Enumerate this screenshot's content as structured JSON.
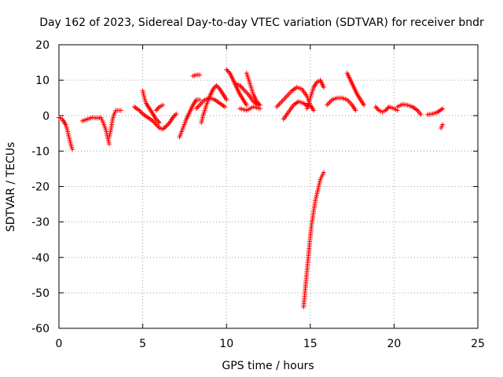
{
  "chart_data": {
    "type": "scatter",
    "title": "Day 162 of 2023, Sidereal Day-to-day VTEC variation (SDTVAR) for receiver bndr",
    "xlabel": "GPS time / hours",
    "ylabel": "SDTVAR / TECUs",
    "xlim": [
      0,
      25
    ],
    "ylim": [
      -60,
      20
    ],
    "xticks": [
      0,
      5,
      10,
      15,
      20,
      25
    ],
    "yticks": [
      -60,
      -50,
      -40,
      -30,
      -20,
      -10,
      0,
      10,
      20
    ],
    "grid": true,
    "marker": "+",
    "color": "#ff0000",
    "series": [
      {
        "name": "SDTVAR",
        "arcs": [
          [
            [
              0.0,
              -0.5
            ],
            [
              0.2,
              -1
            ],
            [
              0.4,
              -2.5
            ],
            [
              0.5,
              -4
            ],
            [
              0.6,
              -6
            ],
            [
              0.7,
              -8
            ],
            [
              0.8,
              -9.5
            ]
          ],
          [
            [
              1.4,
              -1.5
            ],
            [
              1.7,
              -1
            ],
            [
              2.0,
              -0.5
            ],
            [
              2.3,
              -0.7
            ],
            [
              2.5,
              -0.5
            ],
            [
              2.6,
              -1.5
            ],
            [
              2.8,
              -4
            ],
            [
              2.9,
              -6
            ],
            [
              3.0,
              -8
            ]
          ],
          [
            [
              3.0,
              -6
            ],
            [
              3.1,
              -4
            ],
            [
              3.2,
              -1
            ],
            [
              3.3,
              0.5
            ],
            [
              3.4,
              1.5
            ],
            [
              3.7,
              1.5
            ]
          ],
          [
            [
              4.5,
              2.5
            ],
            [
              4.8,
              1.5
            ],
            [
              5.0,
              0.5
            ],
            [
              5.3,
              -0.5
            ],
            [
              5.6,
              -1.5
            ],
            [
              5.8,
              -2.5
            ],
            [
              6.0,
              -3.5
            ],
            [
              6.2,
              -3.8
            ],
            [
              6.4,
              -3
            ],
            [
              6.6,
              -2
            ],
            [
              6.8,
              -0.5
            ],
            [
              7.0,
              0.5
            ]
          ],
          [
            [
              5.0,
              7
            ],
            [
              5.1,
              5
            ],
            [
              5.2,
              3.5
            ],
            [
              5.4,
              2
            ],
            [
              5.6,
              0.5
            ],
            [
              5.8,
              -1
            ],
            [
              6.0,
              -2
            ]
          ],
          [
            [
              5.8,
              1.5
            ],
            [
              6.0,
              2.5
            ],
            [
              6.2,
              3
            ]
          ],
          [
            [
              7.2,
              -6
            ],
            [
              7.4,
              -3.5
            ],
            [
              7.6,
              -1
            ],
            [
              7.8,
              1
            ],
            [
              8.0,
              3
            ],
            [
              8.2,
              4.5
            ],
            [
              8.4,
              4.5
            ]
          ],
          [
            [
              8.0,
              11.2
            ],
            [
              8.2,
              11.5
            ],
            [
              8.4,
              11.5
            ]
          ],
          [
            [
              8.2,
              2
            ],
            [
              8.4,
              3
            ],
            [
              8.7,
              4.5
            ],
            [
              9.0,
              5
            ],
            [
              9.3,
              4.5
            ],
            [
              9.6,
              3.5
            ],
            [
              9.9,
              2.5
            ]
          ],
          [
            [
              8.5,
              -2
            ],
            [
              8.6,
              0
            ],
            [
              8.8,
              3
            ],
            [
              9.0,
              5.5
            ],
            [
              9.2,
              7.5
            ],
            [
              9.4,
              8.5
            ],
            [
              9.6,
              7.5
            ],
            [
              9.8,
              6
            ],
            [
              10.0,
              4.5
            ]
          ],
          [
            [
              10.0,
              13
            ],
            [
              10.2,
              12
            ],
            [
              10.4,
              10
            ],
            [
              10.6,
              8
            ],
            [
              10.8,
              6
            ],
            [
              11.0,
              4.5
            ],
            [
              11.2,
              3
            ]
          ],
          [
            [
              10.6,
              9
            ],
            [
              10.8,
              8.5
            ],
            [
              11.0,
              7.5
            ],
            [
              11.3,
              6
            ],
            [
              11.6,
              4
            ],
            [
              11.9,
              3
            ]
          ],
          [
            [
              11.2,
              12
            ],
            [
              11.4,
              9
            ],
            [
              11.6,
              6
            ],
            [
              11.8,
              4
            ],
            [
              12.0,
              3
            ]
          ],
          [
            [
              10.8,
              2
            ],
            [
              11.2,
              1.5
            ],
            [
              11.6,
              2.5
            ],
            [
              12.0,
              2
            ]
          ],
          [
            [
              13.0,
              2.5
            ],
            [
              13.3,
              4
            ],
            [
              13.6,
              5.5
            ],
            [
              13.9,
              7
            ],
            [
              14.2,
              8
            ],
            [
              14.5,
              7.5
            ],
            [
              14.8,
              5.5
            ],
            [
              15.0,
              3
            ],
            [
              15.2,
              1.5
            ]
          ],
          [
            [
              13.4,
              -1
            ],
            [
              13.7,
              1
            ],
            [
              14.0,
              3
            ],
            [
              14.3,
              4
            ],
            [
              14.6,
              3.5
            ],
            [
              14.9,
              2.5
            ]
          ],
          [
            [
              14.8,
              2
            ],
            [
              15.0,
              5
            ],
            [
              15.2,
              8
            ],
            [
              15.4,
              9.5
            ],
            [
              15.6,
              10
            ],
            [
              15.8,
              8
            ]
          ],
          [
            [
              14.6,
              -54
            ],
            [
              14.7,
              -49
            ],
            [
              14.8,
              -44
            ],
            [
              14.9,
              -39
            ],
            [
              15.0,
              -34
            ],
            [
              15.1,
              -30
            ],
            [
              15.2,
              -27
            ],
            [
              15.3,
              -24
            ],
            [
              15.4,
              -22
            ],
            [
              15.5,
              -20
            ],
            [
              15.6,
              -18
            ],
            [
              15.7,
              -17
            ],
            [
              15.8,
              -16
            ]
          ],
          [
            [
              16.0,
              3
            ],
            [
              16.3,
              4.5
            ],
            [
              16.6,
              5
            ],
            [
              16.9,
              5
            ],
            [
              17.2,
              4.5
            ],
            [
              17.5,
              3
            ],
            [
              17.7,
              1.5
            ]
          ],
          [
            [
              17.2,
              12
            ],
            [
              17.4,
              10
            ],
            [
              17.6,
              8
            ],
            [
              17.8,
              6
            ],
            [
              18.0,
              4.5
            ],
            [
              18.2,
              3
            ]
          ],
          [
            [
              18.9,
              2.5
            ],
            [
              19.1,
              1.5
            ],
            [
              19.3,
              1
            ],
            [
              19.5,
              1.5
            ],
            [
              19.7,
              2.5
            ],
            [
              20.0,
              2
            ],
            [
              20.2,
              1.5
            ]
          ],
          [
            [
              20.2,
              2.5
            ],
            [
              20.5,
              3.2
            ],
            [
              20.8,
              3
            ],
            [
              21.1,
              2.5
            ],
            [
              21.4,
              1.5
            ],
            [
              21.6,
              0.3
            ]
          ],
          [
            [
              22.0,
              0.3
            ],
            [
              22.3,
              0.5
            ],
            [
              22.6,
              1
            ],
            [
              22.9,
              2
            ]
          ],
          [
            [
              22.8,
              -3.5
            ],
            [
              22.9,
              -2.5
            ]
          ]
        ]
      }
    ]
  }
}
